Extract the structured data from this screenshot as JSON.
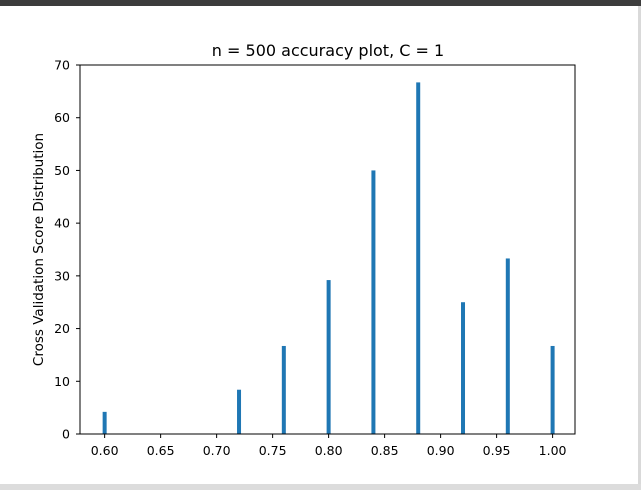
{
  "chart_data": {
    "type": "bar",
    "title": "n = 500 accuracy plot, C = 1",
    "xlabel": "",
    "ylabel": "Cross Validation Score Distribution",
    "xlim": [
      0.578,
      1.02
    ],
    "ylim": [
      0,
      70
    ],
    "x_ticks": [
      "0.60",
      "0.65",
      "0.70",
      "0.75",
      "0.80",
      "0.85",
      "0.90",
      "0.95",
      "1.00"
    ],
    "y_ticks": [
      "0",
      "10",
      "20",
      "30",
      "40",
      "50",
      "60",
      "70"
    ],
    "x": [
      0.6,
      0.72,
      0.76,
      0.8,
      0.84,
      0.88,
      0.92,
      0.96,
      1.0
    ],
    "values": [
      4.2,
      8.4,
      16.7,
      29.2,
      50.0,
      66.7,
      25.0,
      33.3,
      16.7
    ],
    "bar_color": "#1f77b4",
    "grid": false,
    "legend": "none"
  }
}
